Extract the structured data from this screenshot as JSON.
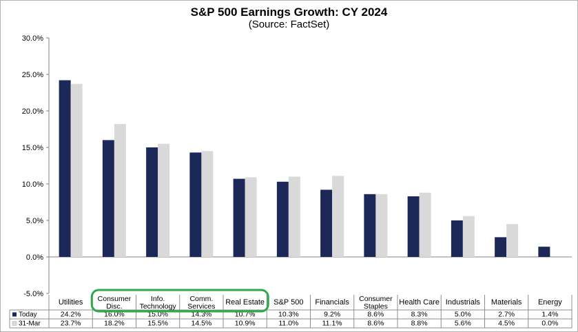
{
  "chart_data": {
    "type": "bar",
    "title": "S&P 500 Earnings Growth: CY 2024",
    "subtitle": "(Source: FactSet)",
    "categories": [
      [
        "Utilities"
      ],
      [
        "Consumer",
        "Disc."
      ],
      [
        "Info.",
        "Technology"
      ],
      [
        "Comm.",
        "Services"
      ],
      [
        "Real Estate"
      ],
      [
        "S&P 500"
      ],
      [
        "Financials"
      ],
      [
        "Consumer",
        "Staples"
      ],
      [
        "Health Care"
      ],
      [
        "Industrials"
      ],
      [
        "Materials"
      ],
      [
        "Energy"
      ]
    ],
    "series": [
      {
        "name": "Today",
        "color": "#1c2858",
        "values": [
          24.2,
          16.0,
          15.0,
          14.3,
          10.7,
          10.3,
          9.2,
          8.6,
          8.3,
          5.0,
          2.7,
          1.4
        ],
        "labels": [
          "24.2%",
          "16.0%",
          "15.0%",
          "14.3%",
          "10.7%",
          "10.3%",
          "9.2%",
          "8.6%",
          "8.3%",
          "5.0%",
          "2.7%",
          "1.4%"
        ]
      },
      {
        "name": "31-Mar",
        "color": "#d9d9d9",
        "values": [
          23.7,
          18.2,
          15.5,
          14.5,
          10.9,
          11.0,
          11.1,
          8.6,
          8.8,
          5.6,
          4.5,
          0.0
        ],
        "labels": [
          "23.7%",
          "18.2%",
          "15.5%",
          "14.5%",
          "10.9%",
          "11.0%",
          "11.1%",
          "8.6%",
          "8.8%",
          "5.6%",
          "4.5%",
          "0.0%"
        ]
      }
    ],
    "ylim": [
      -5.0,
      30.0
    ],
    "yticks": [
      30.0,
      25.0,
      20.0,
      15.0,
      10.0,
      5.0,
      0.0,
      -5.0
    ],
    "ytick_labels": [
      "30.0%",
      "25.0%",
      "20.0%",
      "15.0%",
      "10.0%",
      "5.0%",
      "0.0%",
      "-5.0%"
    ],
    "grid": false,
    "legend": "data-table",
    "highlight": {
      "color": "#2ea84a",
      "categories": [
        1,
        2,
        3,
        4
      ]
    }
  }
}
